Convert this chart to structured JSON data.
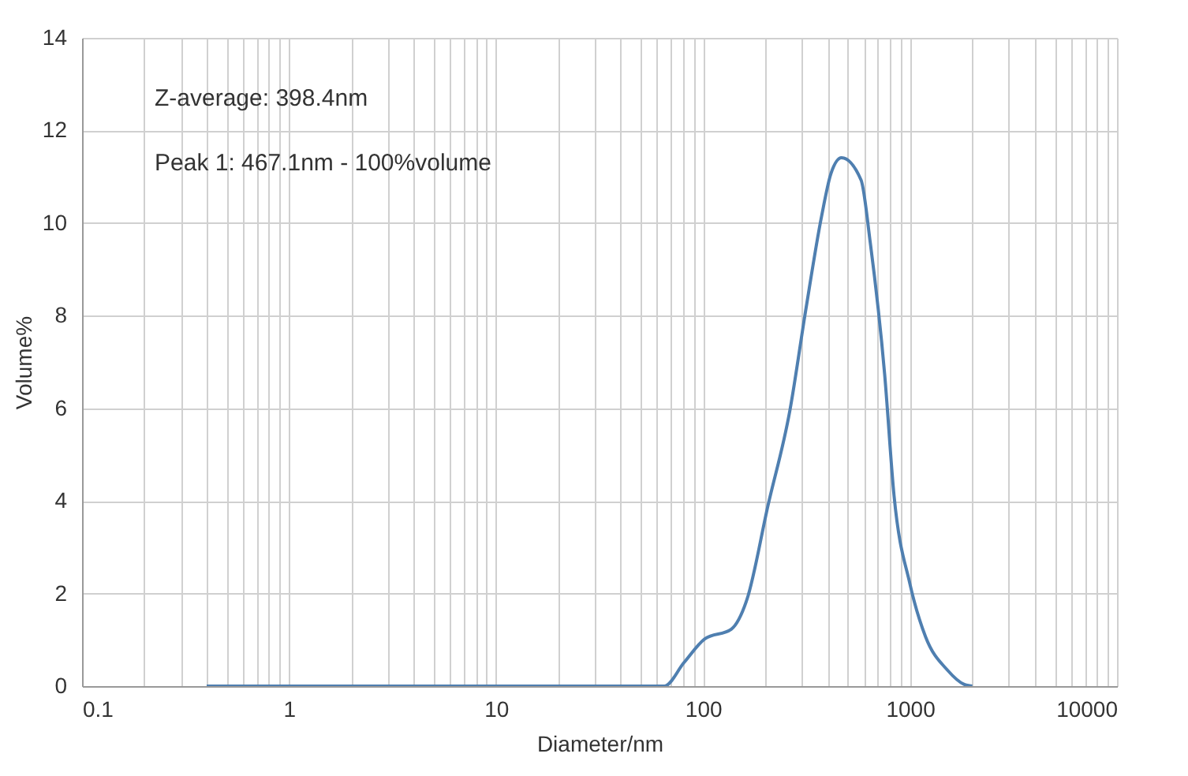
{
  "chart_data": {
    "type": "line",
    "xlabel": "Diameter/nm",
    "ylabel": "Volume%",
    "log": "x",
    "grid": true,
    "annotations": [
      "Z-average: 398.4nm",
      "Peak 1: 467.1nm - 100%volume"
    ],
    "xlim": [
      0.1,
      10000
    ],
    "ylim": [
      0,
      14
    ],
    "yticks": [
      0,
      2,
      4,
      6,
      8,
      10,
      12,
      14
    ],
    "xticks": [
      0.1,
      {
        "value": 0.2,
        "label": null
      },
      {
        "value": 0.3,
        "label": null
      },
      {
        "value": 0.4,
        "label": null
      },
      {
        "value": 0.5,
        "label": null
      },
      {
        "value": 0.6,
        "label": null
      },
      {
        "value": 0.7,
        "label": null
      },
      {
        "value": 0.8,
        "label": null
      },
      {
        "value": 0.9,
        "label": null
      },
      1,
      {
        "value": 2,
        "label": null
      },
      {
        "value": 3,
        "label": null
      },
      {
        "value": 4,
        "label": null
      },
      {
        "value": 5,
        "label": null
      },
      {
        "value": 6,
        "label": null
      },
      {
        "value": 7,
        "label": null
      },
      {
        "value": 8,
        "label": null
      },
      {
        "value": 9,
        "label": null
      },
      10,
      {
        "value": 20,
        "label": null
      },
      {
        "value": 30,
        "label": null
      },
      {
        "value": 40,
        "label": null
      },
      {
        "value": 50,
        "label": null
      },
      {
        "value": 60,
        "label": null
      },
      {
        "value": 70,
        "label": null
      },
      {
        "value": 80,
        "label": null
      },
      {
        "value": 90,
        "label": null
      },
      100,
      {
        "value": 200,
        "label": null
      },
      {
        "value": 300,
        "label": null
      },
      {
        "value": 400,
        "label": null
      },
      {
        "value": 500,
        "label": null
      },
      {
        "value": 600,
        "label": null
      },
      {
        "value": 700,
        "label": null
      },
      {
        "value": 800,
        "label": null
      },
      {
        "value": 900,
        "label": null
      },
      1000,
      {
        "value": 2000,
        "label": null
      },
      {
        "value": 3000,
        "label": null
      },
      {
        "value": 4000,
        "label": null
      },
      {
        "value": 5000,
        "label": null
      },
      {
        "value": 6000,
        "label": null
      },
      {
        "value": 7000,
        "label": null
      },
      {
        "value": 8000,
        "label": null
      },
      {
        "value": 9000,
        "label": null
      },
      10000
    ],
    "series": [
      {
        "color": "#4f7fb0",
        "x": [
          0.4,
          10,
          50,
          65,
          81,
          102,
          137,
          163,
          206,
          263,
          313,
          374,
          415,
          467,
          580,
          643,
          754,
          837,
          1000,
          1190,
          1520,
          1820,
          2000
        ],
        "values": [
          0,
          0,
          0,
          0,
          0.51,
          1.02,
          1.23,
          1.87,
          3.9,
          5.96,
          8.1,
          10.15,
          11.07,
          11.41,
          10.93,
          9.57,
          6.74,
          4.12,
          2.2,
          1.06,
          0.34,
          0.04,
          0
        ]
      }
    ]
  }
}
